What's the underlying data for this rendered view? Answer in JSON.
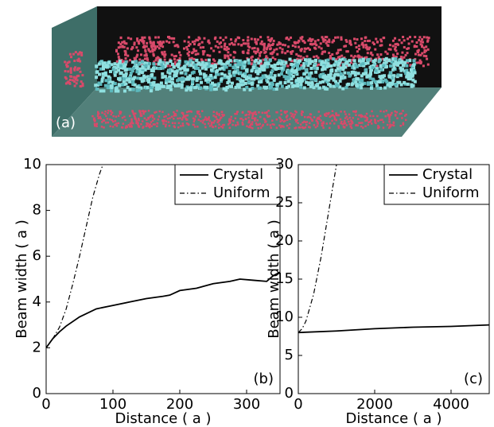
{
  "image": {
    "label": "(a)"
  },
  "chart_data": [
    {
      "type": "line",
      "panel_label": "(b)",
      "xlabel": "Distance ( a )",
      "ylabel": "Beam width ( a )",
      "xlim": [
        0,
        350
      ],
      "xticks": [
        0,
        100,
        200,
        300
      ],
      "ylim": [
        0,
        10
      ],
      "yticks": [
        0,
        2,
        4,
        6,
        8,
        10
      ],
      "legend": "upper right",
      "series": [
        {
          "name": "Crystal",
          "color": "#000000",
          "style": "solid",
          "x": [
            0,
            10,
            20,
            30,
            50,
            75,
            100,
            125,
            150,
            175,
            185,
            200,
            225,
            250,
            275,
            290,
            310,
            330,
            340,
            350
          ],
          "values": [
            2.0,
            2.4,
            2.7,
            2.95,
            3.35,
            3.7,
            3.85,
            4.0,
            4.15,
            4.25,
            4.3,
            4.5,
            4.6,
            4.8,
            4.9,
            5.0,
            4.95,
            4.9,
            5.15,
            5.3
          ]
        },
        {
          "name": "Uniform",
          "color": "#000000",
          "style": "dashdot",
          "x": [
            0,
            10,
            20,
            30,
            40,
            50,
            60,
            70,
            80,
            85
          ],
          "values": [
            2.0,
            2.4,
            2.9,
            3.7,
            4.8,
            6.0,
            7.3,
            8.6,
            9.6,
            10.0
          ]
        }
      ]
    },
    {
      "type": "line",
      "panel_label": "(c)",
      "xlabel": "Distance ( a )",
      "ylabel": "Beam width ( a )",
      "xlim": [
        0,
        5000
      ],
      "xticks": [
        0,
        2000,
        4000
      ],
      "ylim": [
        0,
        30
      ],
      "yticks": [
        0,
        5,
        10,
        15,
        20,
        25,
        30
      ],
      "legend": "upper right",
      "series": [
        {
          "name": "Crystal",
          "color": "#000000",
          "style": "solid",
          "x": [
            0,
            1000,
            2000,
            3000,
            4000,
            5000
          ],
          "values": [
            8.0,
            8.2,
            8.5,
            8.7,
            8.8,
            9.0
          ]
        },
        {
          "name": "Uniform",
          "color": "#000000",
          "style": "dashdot",
          "x": [
            0,
            100,
            200,
            400,
            600,
            800,
            1000
          ],
          "values": [
            8.0,
            8.5,
            9.5,
            13.0,
            18.0,
            24.0,
            30.0
          ]
        }
      ]
    }
  ]
}
